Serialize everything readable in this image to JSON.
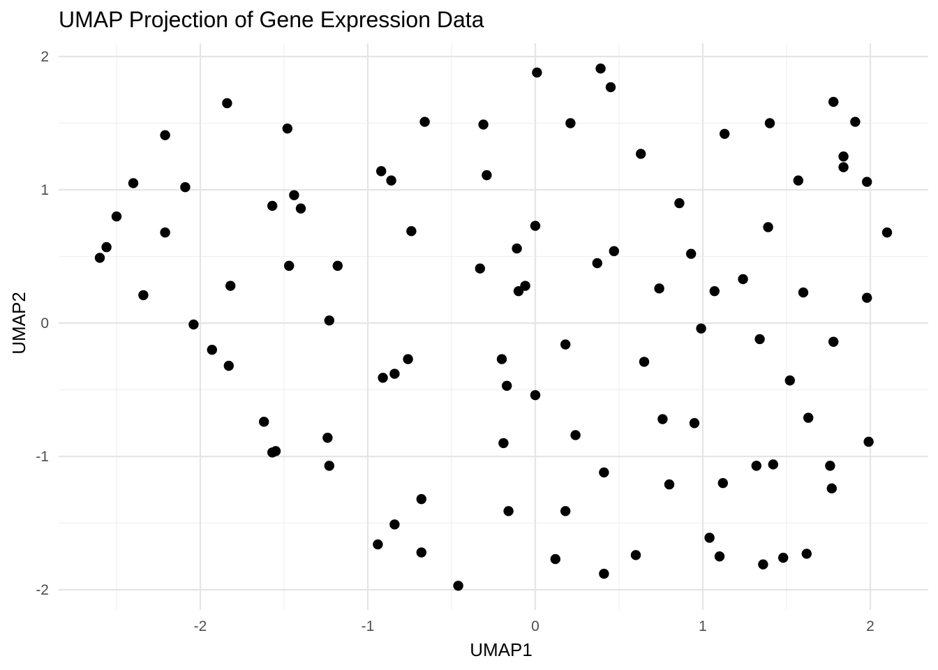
{
  "chart_data": {
    "type": "scatter",
    "title": "UMAP Projection of Gene Expression Data",
    "xlabel": "UMAP1",
    "ylabel": "UMAP2",
    "xlim": [
      -2.6,
      2.1
    ],
    "ylim": [
      -2.0,
      2.0
    ],
    "x_ticks": [
      -2,
      -1,
      0,
      1,
      2
    ],
    "y_ticks": [
      -2,
      -1,
      0,
      1,
      2
    ],
    "x_tick_labels": [
      "-2",
      "-1",
      "0",
      "1",
      "2"
    ],
    "y_tick_labels": [
      "-2",
      "-1",
      "0",
      "1",
      "2"
    ],
    "grid": true,
    "point_color": "#000000",
    "points": [
      {
        "x": -2.6,
        "y": 0.49
      },
      {
        "x": -2.56,
        "y": 0.57
      },
      {
        "x": -2.5,
        "y": 0.8
      },
      {
        "x": -2.4,
        "y": 1.05
      },
      {
        "x": -2.34,
        "y": 0.21
      },
      {
        "x": -2.21,
        "y": 1.41
      },
      {
        "x": -2.21,
        "y": 0.68
      },
      {
        "x": -2.09,
        "y": 1.02
      },
      {
        "x": -2.04,
        "y": -0.01
      },
      {
        "x": -1.93,
        "y": -0.2
      },
      {
        "x": -1.84,
        "y": 1.65
      },
      {
        "x": -1.83,
        "y": -0.32
      },
      {
        "x": -1.82,
        "y": 0.28
      },
      {
        "x": -1.62,
        "y": -0.74
      },
      {
        "x": -1.57,
        "y": 0.88
      },
      {
        "x": -1.57,
        "y": -0.97
      },
      {
        "x": -1.55,
        "y": -0.96
      },
      {
        "x": -1.48,
        "y": 1.46
      },
      {
        "x": -1.47,
        "y": 0.43
      },
      {
        "x": -1.44,
        "y": 0.96
      },
      {
        "x": -1.4,
        "y": 0.86
      },
      {
        "x": -1.24,
        "y": -0.86
      },
      {
        "x": -1.23,
        "y": 0.02
      },
      {
        "x": -1.23,
        "y": -1.07
      },
      {
        "x": -1.18,
        "y": 0.43
      },
      {
        "x": -0.94,
        "y": -1.66
      },
      {
        "x": -0.92,
        "y": 1.14
      },
      {
        "x": -0.91,
        "y": -0.41
      },
      {
        "x": -0.86,
        "y": 1.07
      },
      {
        "x": -0.84,
        "y": -0.38
      },
      {
        "x": -0.84,
        "y": -1.51
      },
      {
        "x": -0.76,
        "y": -0.27
      },
      {
        "x": -0.74,
        "y": 0.69
      },
      {
        "x": -0.68,
        "y": -1.32
      },
      {
        "x": -0.68,
        "y": -1.72
      },
      {
        "x": -0.66,
        "y": 1.51
      },
      {
        "x": -0.46,
        "y": -1.97
      },
      {
        "x": -0.33,
        "y": 0.41
      },
      {
        "x": -0.31,
        "y": 1.49
      },
      {
        "x": -0.29,
        "y": 1.11
      },
      {
        "x": -0.2,
        "y": -0.27
      },
      {
        "x": -0.19,
        "y": -0.9
      },
      {
        "x": -0.17,
        "y": -0.47
      },
      {
        "x": -0.16,
        "y": -1.41
      },
      {
        "x": -0.11,
        "y": 0.56
      },
      {
        "x": -0.1,
        "y": 0.24
      },
      {
        "x": -0.06,
        "y": 0.28
      },
      {
        "x": 0.0,
        "y": 0.73
      },
      {
        "x": 0.0,
        "y": -0.54
      },
      {
        "x": 0.01,
        "y": 1.88
      },
      {
        "x": 0.12,
        "y": -1.77
      },
      {
        "x": 0.18,
        "y": -0.16
      },
      {
        "x": 0.18,
        "y": -1.41
      },
      {
        "x": 0.21,
        "y": 1.5
      },
      {
        "x": 0.24,
        "y": -0.84
      },
      {
        "x": 0.37,
        "y": 0.45
      },
      {
        "x": 0.39,
        "y": 1.91
      },
      {
        "x": 0.41,
        "y": -1.12
      },
      {
        "x": 0.41,
        "y": -1.88
      },
      {
        "x": 0.45,
        "y": 1.77
      },
      {
        "x": 0.47,
        "y": 0.54
      },
      {
        "x": 0.6,
        "y": -1.74
      },
      {
        "x": 0.63,
        "y": 1.27
      },
      {
        "x": 0.65,
        "y": -0.29
      },
      {
        "x": 0.74,
        "y": 0.26
      },
      {
        "x": 0.76,
        "y": -0.72
      },
      {
        "x": 0.8,
        "y": -1.21
      },
      {
        "x": 0.86,
        "y": 0.9
      },
      {
        "x": 0.93,
        "y": 0.52
      },
      {
        "x": 0.95,
        "y": -0.75
      },
      {
        "x": 0.99,
        "y": -0.04
      },
      {
        "x": 1.04,
        "y": -1.61
      },
      {
        "x": 1.07,
        "y": 0.24
      },
      {
        "x": 1.1,
        "y": -1.75
      },
      {
        "x": 1.12,
        "y": -1.2
      },
      {
        "x": 1.13,
        "y": 1.42
      },
      {
        "x": 1.24,
        "y": 0.33
      },
      {
        "x": 1.32,
        "y": -1.07
      },
      {
        "x": 1.34,
        "y": -0.12
      },
      {
        "x": 1.36,
        "y": -1.81
      },
      {
        "x": 1.39,
        "y": 0.72
      },
      {
        "x": 1.4,
        "y": 1.5
      },
      {
        "x": 1.42,
        "y": -1.06
      },
      {
        "x": 1.48,
        "y": -1.76
      },
      {
        "x": 1.52,
        "y": -0.43
      },
      {
        "x": 1.57,
        "y": 1.07
      },
      {
        "x": 1.6,
        "y": 0.23
      },
      {
        "x": 1.62,
        "y": -1.73
      },
      {
        "x": 1.63,
        "y": -0.71
      },
      {
        "x": 1.76,
        "y": -1.07
      },
      {
        "x": 1.77,
        "y": -1.24
      },
      {
        "x": 1.78,
        "y": 1.66
      },
      {
        "x": 1.78,
        "y": -0.14
      },
      {
        "x": 1.84,
        "y": 1.25
      },
      {
        "x": 1.84,
        "y": 1.17
      },
      {
        "x": 1.91,
        "y": 1.51
      },
      {
        "x": 1.98,
        "y": 1.06
      },
      {
        "x": 1.98,
        "y": 0.19
      },
      {
        "x": 1.99,
        "y": -0.89
      },
      {
        "x": 2.1,
        "y": 0.68
      }
    ]
  }
}
